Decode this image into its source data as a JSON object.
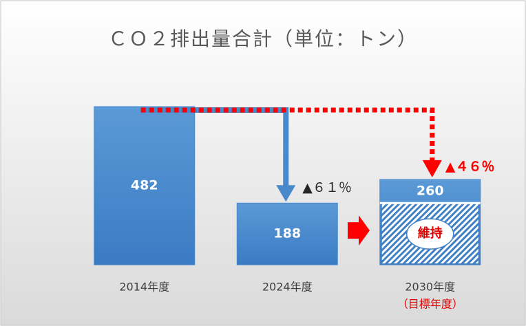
{
  "chart_data": {
    "type": "bar",
    "title": "ＣＯ２排出量合計（単位：トン）",
    "categories": [
      "2014年度",
      "2024年度",
      "2030年度"
    ],
    "category_note": "（目標年度）",
    "values": [
      482,
      188,
      260
    ],
    "color": "#4a88cc",
    "ylim": [
      0,
      482
    ],
    "annotations": {
      "reduction_2024": "▲６１％",
      "reduction_2030": "▲４６％",
      "maintained": "維持"
    }
  }
}
